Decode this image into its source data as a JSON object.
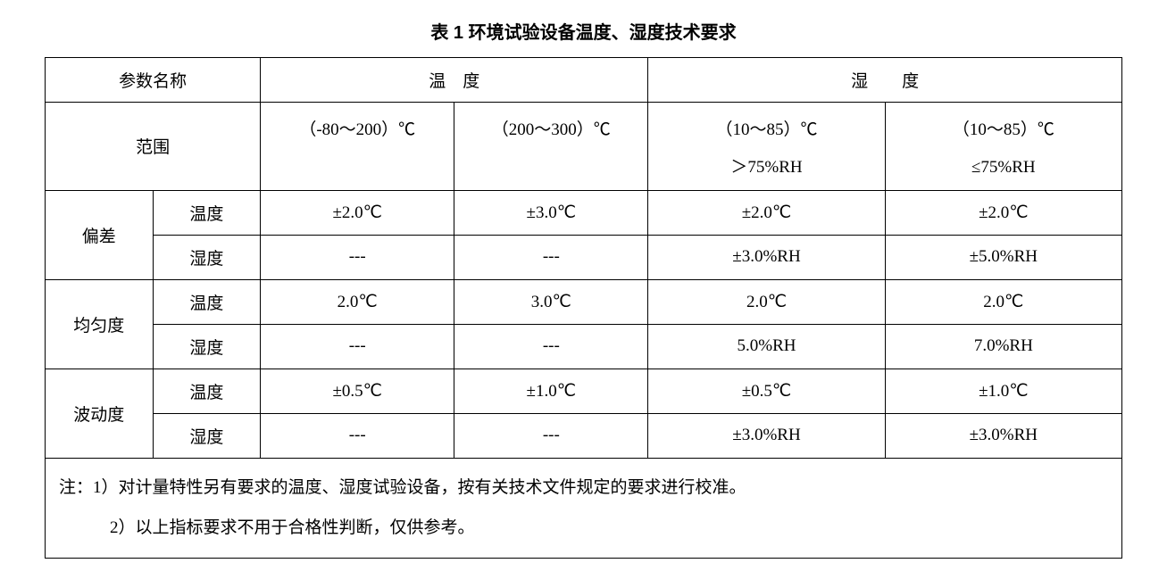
{
  "title": "表 1  环境试验设备温度、湿度技术要求",
  "headers": {
    "param_name": "参数名称",
    "temperature": "温 度",
    "humidity": "湿　 度"
  },
  "range": {
    "label": "范围",
    "temp1": "（-80～200）℃",
    "temp2": "（200～300）℃",
    "hum1_line1": "（10～85）℃",
    "hum1_line2": "＞75%RH",
    "hum2_line1": "（10～85）℃",
    "hum2_line2": "≤75%RH"
  },
  "deviation": {
    "label": "偏差",
    "temp_label": "温度",
    "hum_label": "湿度",
    "temp_row": {
      "c1": "±2.0℃",
      "c2": "±3.0℃",
      "c3": "±2.0℃",
      "c4": "±2.0℃"
    },
    "hum_row": {
      "c1": "---",
      "c2": "---",
      "c3": "±3.0%RH",
      "c4": "±5.0%RH"
    }
  },
  "uniformity": {
    "label": "均匀度",
    "temp_label": "温度",
    "hum_label": "湿度",
    "temp_row": {
      "c1": "2.0℃",
      "c2": "3.0℃",
      "c3": "2.0℃",
      "c4": "2.0℃"
    },
    "hum_row": {
      "c1": "---",
      "c2": "---",
      "c3": "5.0%RH",
      "c4": "7.0%RH"
    }
  },
  "fluctuation": {
    "label": "波动度",
    "temp_label": "温度",
    "hum_label": "湿度",
    "temp_row": {
      "c1": "±0.5℃",
      "c2": "±1.0℃",
      "c3": "±0.5℃",
      "c4": "±1.0℃"
    },
    "hum_row": {
      "c1": "---",
      "c2": "---",
      "c3": "±3.0%RH",
      "c4": "±3.0%RH"
    }
  },
  "notes": {
    "line1": "注：1）对计量特性另有要求的温度、湿度试验设备，按有关技术文件规定的要求进行校准。",
    "line2": "　　　2）以上指标要求不用于合格性判断，仅供参考。"
  }
}
